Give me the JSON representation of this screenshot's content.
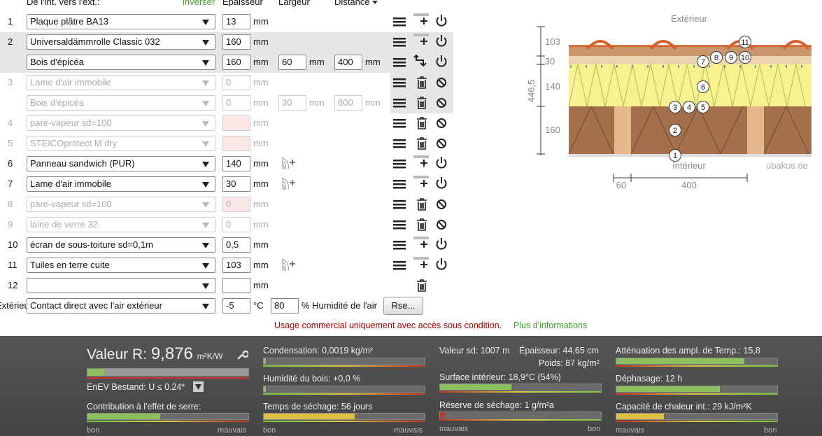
{
  "header": {
    "direction": "De l'int. vers l'ext.:",
    "invert": "inverser",
    "thickness": "Epaisseur",
    "width": "Largeur",
    "distance": "Distance"
  },
  "unit": "mm",
  "rows": [
    {
      "number": 1,
      "material": "Plaque plâtre BA13",
      "thickness": 13,
      "state": "active"
    },
    {
      "number": 2,
      "material": "Universaldämmrolle Classic 032",
      "thickness": 160,
      "state": "active",
      "highlight": "full"
    },
    {
      "material": "Bois d'épicéa",
      "thickness": 160,
      "width": 60,
      "distance": 400,
      "state": "active",
      "highlight": "full",
      "sub": true
    },
    {
      "number": 3,
      "material": "Lame d'air immobile",
      "thickness": 0,
      "state": "disabled",
      "highlight": "icons"
    },
    {
      "material": "Bois d'épicéa",
      "thickness": 0,
      "width": 30,
      "distance": 600,
      "state": "disabled",
      "highlight": "icons",
      "sub": true
    },
    {
      "number": 4,
      "material": "pare-vapeur sd=100",
      "state": "disabled",
      "invalid": true
    },
    {
      "number": 5,
      "material": "STEICOprotect M dry",
      "state": "disabled",
      "invalid": true
    },
    {
      "number": 6,
      "material": "Panneau sandwich (PUR)",
      "thickness": 140,
      "state": "active",
      "texture": true
    },
    {
      "number": 7,
      "material": "Lame d'air immobile",
      "thickness": 30,
      "state": "active",
      "texture": true
    },
    {
      "number": 8,
      "material": "pare-vapeur sd=100",
      "thickness": 0,
      "state": "disabled",
      "invalid": true
    },
    {
      "number": 9,
      "material": "laine de verre 32",
      "thickness": 0,
      "state": "disabled"
    },
    {
      "number": 10,
      "material": "écran de sous-toiture sd=0,1m",
      "thickness": "0,5",
      "state": "active"
    },
    {
      "number": 11,
      "material": "Tuiles en terre cuite",
      "thickness": 103,
      "state": "active",
      "texture": true
    },
    {
      "number": 12,
      "state": "new"
    }
  ],
  "exterior": {
    "label": "Extérieur",
    "material": "Contact direct avec l'air extérieur",
    "temperature": -5,
    "temperature_unit": "°C",
    "humidity": 80,
    "humidity_label": "% Humidité de l'air",
    "button": "Rse..."
  },
  "notice": {
    "text": "Usage commercial uniquement avec accès sous condition.",
    "link": "Plus d'informations"
  },
  "diagram": {
    "outside": "Extérieur",
    "inside": "Intérieur",
    "credit": "ubakus.de",
    "layer_dims": [
      "103",
      "30",
      "140",
      "160"
    ],
    "total": "446,5",
    "width_dims": [
      "60",
      "400"
    ],
    "markers": [
      "1",
      "2",
      "3",
      "4",
      "5",
      "6",
      "7",
      "8",
      "9",
      "10",
      "11"
    ]
  },
  "results": {
    "r_label": "Valeur R:",
    "r_value": "9,876",
    "r_unit": "m²K/W",
    "enev": "EnEV Bestand: U ≤ 0.24*",
    "greenhouse": "Contribution à l'effet de serre:",
    "condensation": "Condensation: 0,0019 kg/m²",
    "wood_moisture": "Humidité du bois: +0,0 %",
    "drying_time": "Temps de séchage: 56 jours",
    "sd_value": "Valeur sd: 1007 m",
    "thickness": "Épaisseur: 44,65 cm",
    "weight": "Poids: 87 kg/m²",
    "surface": "Surface intérieur: 18,9°C (54%)",
    "drying_reserve": "Réserve de séchage: 1 g/m²a",
    "attenuation": "Atténuation des ampl. de Temp.: 15,8",
    "phase_shift": "Déphasage: 12 h",
    "heat_capacity": "Capacité de chaleur int.: 29 kJ/m²K",
    "good": "bon",
    "bad": "mauvais"
  }
}
